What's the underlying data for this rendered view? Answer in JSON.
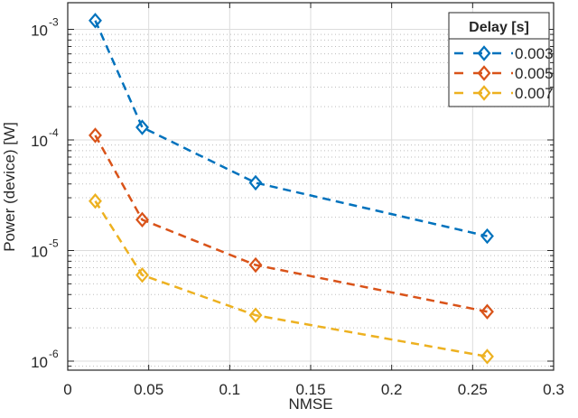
{
  "chart_data": {
    "type": "line",
    "title": "",
    "xlabel": "NMSE",
    "ylabel": "Power (device) [W]",
    "xlim": [
      0,
      0.3
    ],
    "ylim": [
      1e-06,
      0.002
    ],
    "yscale": "log",
    "xticks": [
      0,
      0.05,
      0.1,
      0.15,
      0.2,
      0.25,
      0.3
    ],
    "xtick_labels": [
      "0",
      "0.05",
      "0.1",
      "0.15",
      "0.2",
      "0.25",
      "0.3"
    ],
    "yticks": [
      1e-06,
      1e-05,
      0.0001,
      0.001
    ],
    "ytick_exponents": [
      "-6",
      "-5",
      "-4",
      "-3"
    ],
    "grid": true,
    "minor_grid": true,
    "legend": {
      "title": "Delay [s]",
      "position": "upper right"
    },
    "x": [
      0.017,
      0.046,
      0.116,
      0.259
    ],
    "series": [
      {
        "name": "0.003",
        "color": "#0072BD",
        "marker": "diamond",
        "linestyle": "dashed",
        "values": [
          0.0012,
          0.00013,
          4.1e-05,
          1.35e-05
        ]
      },
      {
        "name": "0.005",
        "color": "#D95319",
        "marker": "diamond",
        "linestyle": "dashed",
        "values": [
          0.00011,
          1.9e-05,
          7.4e-06,
          2.8e-06
        ]
      },
      {
        "name": "0.007",
        "color": "#EDB120",
        "marker": "diamond",
        "linestyle": "dashed",
        "values": [
          2.8e-05,
          6e-06,
          2.6e-06,
          1.1e-06
        ]
      }
    ]
  }
}
